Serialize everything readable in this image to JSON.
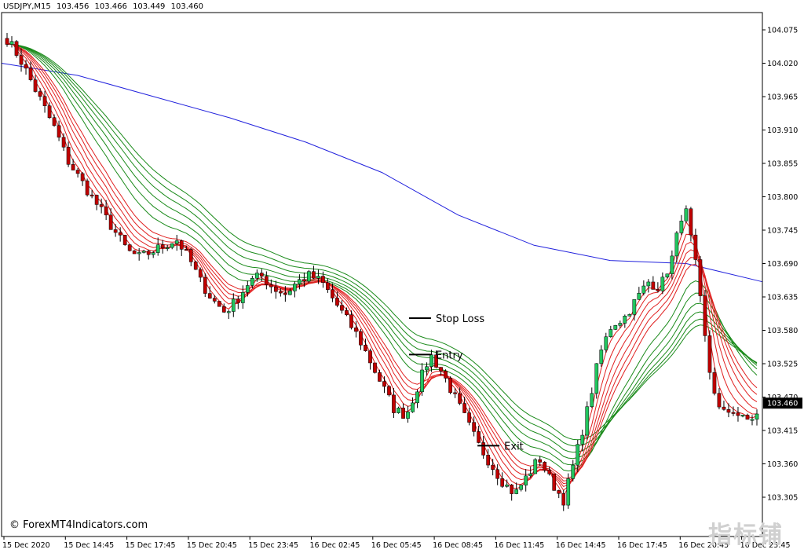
{
  "header": {
    "symbol": "USDJPY,M15",
    "open": "103.456",
    "high": "103.466",
    "low": "103.449",
    "close": "103.460"
  },
  "watermark": "© ForexMT4Indicators.com",
  "corner_text": "指标铺",
  "colors": {
    "bull": "#22c55e",
    "bear": "#c00000",
    "slow_ma": "#2222dd",
    "green_ribbon": "#1a8a1a",
    "red_ribbon": "#e02020"
  },
  "chart_data": {
    "type": "candlestick",
    "instrument": "USDJPY",
    "timeframe": "M15",
    "ylim": [
      103.25,
      104.1
    ],
    "y_ticks": [
      "104.075",
      "104.020",
      "103.965",
      "103.910",
      "103.855",
      "103.800",
      "103.745",
      "103.690",
      "103.635",
      "103.580",
      "103.525",
      "103.470",
      "103.415",
      "103.360",
      "103.305"
    ],
    "current_price": "103.460",
    "x_ticks": [
      "15 Dec 2020",
      "15 Dec 14:45",
      "15 Dec 17:45",
      "15 Dec 20:45",
      "15 Dec 23:45",
      "16 Dec 02:45",
      "16 Dec 05:45",
      "16 Dec 08:45",
      "16 Dec 11:45",
      "16 Dec 14:45",
      "16 Dec 17:45",
      "16 Dec 20:45",
      "16 Dec 23:45"
    ],
    "close_anchors": [
      104.06,
      104.03,
      103.99,
      103.95,
      103.91,
      103.86,
      103.83,
      103.8,
      103.77,
      103.74,
      103.71,
      103.7,
      103.71,
      103.72,
      103.73,
      103.7,
      103.66,
      103.63,
      103.61,
      103.63,
      103.66,
      103.67,
      103.65,
      103.64,
      103.66,
      103.67,
      103.66,
      103.63,
      103.6,
      103.57,
      103.53,
      103.49,
      103.45,
      103.44,
      103.49,
      103.54,
      103.51,
      103.47,
      103.43,
      103.39,
      103.36,
      103.33,
      103.31,
      103.34,
      103.37,
      103.33,
      103.3,
      103.37,
      103.45,
      103.54,
      103.59,
      103.6,
      103.63,
      103.66,
      103.65,
      103.7,
      103.79,
      103.68,
      103.52,
      103.44,
      103.45,
      103.43,
      103.44
    ],
    "slow_ma_anchors": [
      [
        0,
        104.02
      ],
      [
        0.1,
        104.0
      ],
      [
        0.2,
        103.965
      ],
      [
        0.3,
        103.93
      ],
      [
        0.4,
        103.89
      ],
      [
        0.5,
        103.84
      ],
      [
        0.6,
        103.77
      ],
      [
        0.7,
        103.72
      ],
      [
        0.8,
        103.695
      ],
      [
        0.9,
        103.69
      ],
      [
        1.0,
        103.66
      ]
    ],
    "green_ribbon": {
      "lines": 6,
      "spread": 0.012
    },
    "red_ribbon": {
      "lines": 6,
      "spread": 0.007
    },
    "annotations": [
      {
        "label": "Stop Loss",
        "price": 103.6,
        "at": 0.55
      },
      {
        "label": "Entry",
        "price": 103.54,
        "at": 0.55
      },
      {
        "label": "Exit",
        "price": 103.39,
        "at": 0.64
      }
    ]
  }
}
